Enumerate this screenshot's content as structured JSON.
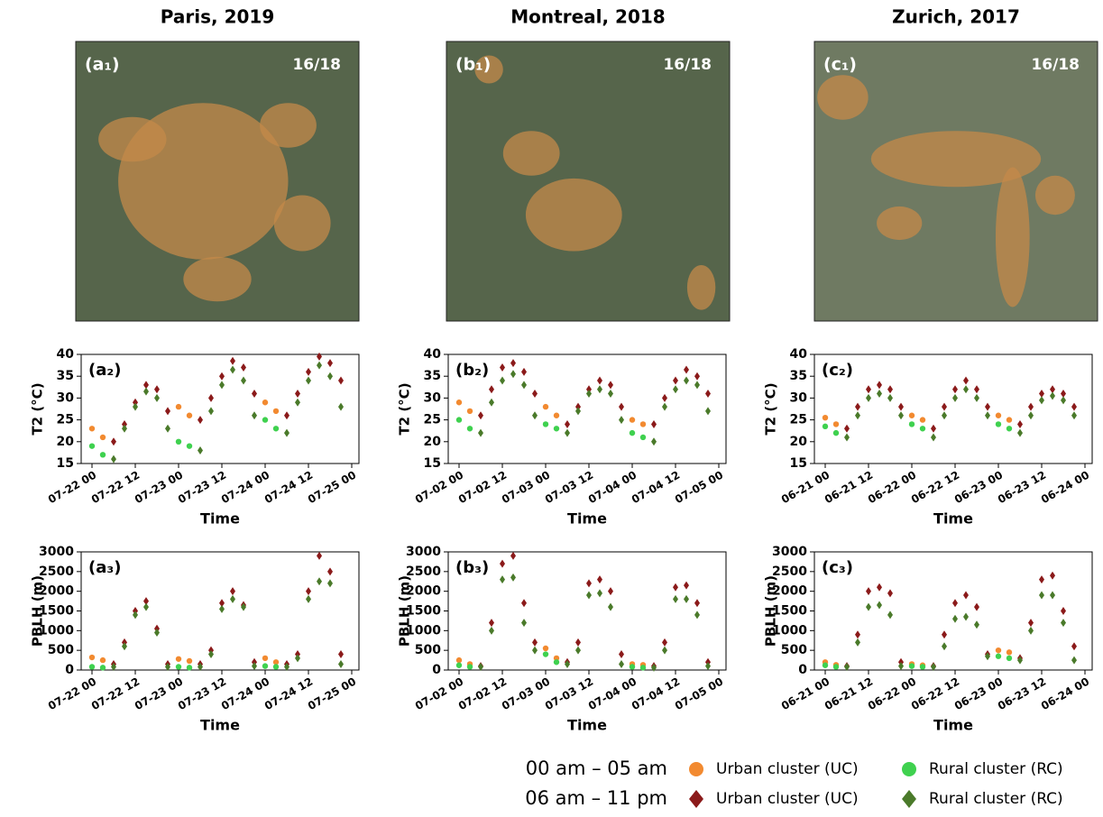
{
  "maps": [
    {
      "title": "Paris, 2019",
      "panel": "(a₁)",
      "ratio": "16/18"
    },
    {
      "title": "Montreal, 2018",
      "panel": "(b₁)",
      "ratio": "16/18"
    },
    {
      "title": "Zurich, 2017",
      "panel": "(c₁)",
      "ratio": "16/18"
    }
  ],
  "legend": {
    "periods": [
      "00 am – 05 am",
      "06 am – 11 pm"
    ]
  },
  "chart_data": [
    {
      "type": "scatter",
      "panel": "(a₂)",
      "y_label": "T2 (°C)",
      "x_label": "Time",
      "xlim": [
        -3,
        74
      ],
      "xticks": [
        {
          "value": 0,
          "label": "07-22 00"
        },
        {
          "value": 12,
          "label": "07-22 12"
        },
        {
          "value": 24,
          "label": "07-23 00"
        },
        {
          "value": 36,
          "label": "07-23 12"
        },
        {
          "value": 48,
          "label": "07-24 00"
        },
        {
          "value": 60,
          "label": "07-24 12"
        },
        {
          "value": 72,
          "label": "07-25 00"
        }
      ],
      "ylim": [
        15,
        40
      ],
      "yticks": [
        15,
        20,
        25,
        30,
        35,
        40
      ],
      "series": [
        {
          "name": "Urban cluster (UC)",
          "color": "#f28a30",
          "marker": "circle",
          "x": [
            0,
            3,
            24,
            27,
            48,
            51
          ],
          "values": [
            23,
            21,
            28,
            26,
            29,
            27
          ]
        },
        {
          "name": "Rural cluster (RC)",
          "color": "#3fd14f",
          "marker": "circle",
          "x": [
            0,
            3,
            24,
            27,
            48,
            51
          ],
          "values": [
            19,
            17,
            20,
            19,
            25,
            23
          ]
        },
        {
          "name": "Urban cluster (UC)",
          "color": "#8b1a1a",
          "marker": "diamond",
          "x": [
            6,
            9,
            12,
            15,
            18,
            21,
            30,
            33,
            36,
            39,
            42,
            45,
            54,
            57,
            60,
            63,
            66,
            69
          ],
          "values": [
            20,
            24,
            29,
            33,
            32,
            27,
            25,
            30,
            35,
            38.5,
            37,
            31,
            26,
            31,
            36,
            39.5,
            38,
            34
          ]
        },
        {
          "name": "Rural cluster (RC)",
          "color": "#4a7a2a",
          "marker": "diamond",
          "x": [
            6,
            9,
            12,
            15,
            18,
            21,
            30,
            33,
            36,
            39,
            42,
            45,
            54,
            57,
            60,
            63,
            66,
            69
          ],
          "values": [
            16,
            23,
            28,
            31.5,
            30,
            23,
            18,
            27,
            33,
            36.5,
            34,
            26,
            22,
            29,
            34,
            37.5,
            35,
            28
          ]
        }
      ]
    },
    {
      "type": "scatter",
      "panel": "(b₂)",
      "y_label": "T2 (°C)",
      "x_label": "Time",
      "xlim": [
        -3,
        74
      ],
      "xticks": [
        {
          "value": 0,
          "label": "07-02 00"
        },
        {
          "value": 12,
          "label": "07-02 12"
        },
        {
          "value": 24,
          "label": "07-03 00"
        },
        {
          "value": 36,
          "label": "07-03 12"
        },
        {
          "value": 48,
          "label": "07-04 00"
        },
        {
          "value": 60,
          "label": "07-04 12"
        },
        {
          "value": 72,
          "label": "07-05 00"
        }
      ],
      "ylim": [
        15,
        40
      ],
      "yticks": [
        15,
        20,
        25,
        30,
        35,
        40
      ],
      "series": [
        {
          "name": "Urban cluster (UC)",
          "color": "#f28a30",
          "marker": "circle",
          "x": [
            0,
            3,
            24,
            27,
            48,
            51
          ],
          "values": [
            29,
            27,
            28,
            26,
            25,
            24
          ]
        },
        {
          "name": "Rural cluster (RC)",
          "color": "#3fd14f",
          "marker": "circle",
          "x": [
            0,
            3,
            24,
            27,
            48,
            51
          ],
          "values": [
            25,
            23,
            24,
            23,
            22,
            21
          ]
        },
        {
          "name": "Urban cluster (UC)",
          "color": "#8b1a1a",
          "marker": "diamond",
          "x": [
            6,
            9,
            12,
            15,
            18,
            21,
            30,
            33,
            36,
            39,
            42,
            45,
            54,
            57,
            60,
            63,
            66,
            69
          ],
          "values": [
            26,
            32,
            37,
            38,
            36,
            31,
            24,
            28,
            32,
            34,
            33,
            28,
            24,
            30,
            34,
            36.5,
            35,
            31
          ]
        },
        {
          "name": "Rural cluster (RC)",
          "color": "#4a7a2a",
          "marker": "diamond",
          "x": [
            6,
            9,
            12,
            15,
            18,
            21,
            30,
            33,
            36,
            39,
            42,
            45,
            54,
            57,
            60,
            63,
            66,
            69
          ],
          "values": [
            22,
            29,
            34,
            35.5,
            33,
            26,
            22,
            27,
            31,
            32,
            31,
            25,
            20,
            28,
            32,
            34,
            33,
            27
          ]
        }
      ]
    },
    {
      "type": "scatter",
      "panel": "(c₂)",
      "y_label": "T2 (°C)",
      "x_label": "Time",
      "xlim": [
        -3,
        74
      ],
      "xticks": [
        {
          "value": 0,
          "label": "06-21 00"
        },
        {
          "value": 12,
          "label": "06-21 12"
        },
        {
          "value": 24,
          "label": "06-22 00"
        },
        {
          "value": 36,
          "label": "06-22 12"
        },
        {
          "value": 48,
          "label": "06-23 00"
        },
        {
          "value": 60,
          "label": "06-23 12"
        },
        {
          "value": 72,
          "label": "06-24 00"
        }
      ],
      "ylim": [
        15,
        40
      ],
      "yticks": [
        15,
        20,
        25,
        30,
        35,
        40
      ],
      "series": [
        {
          "name": "Urban cluster (UC)",
          "color": "#f28a30",
          "marker": "circle",
          "x": [
            0,
            3,
            24,
            27,
            48,
            51
          ],
          "values": [
            25.5,
            24,
            26,
            25,
            26,
            25
          ]
        },
        {
          "name": "Rural cluster (RC)",
          "color": "#3fd14f",
          "marker": "circle",
          "x": [
            0,
            3,
            24,
            27,
            48,
            51
          ],
          "values": [
            23.5,
            22,
            24,
            23,
            24,
            23
          ]
        },
        {
          "name": "Urban cluster (UC)",
          "color": "#8b1a1a",
          "marker": "diamond",
          "x": [
            6,
            9,
            12,
            15,
            18,
            21,
            30,
            33,
            36,
            39,
            42,
            45,
            54,
            57,
            60,
            63,
            66,
            69
          ],
          "values": [
            23,
            28,
            32,
            33,
            32,
            28,
            23,
            28,
            32,
            34,
            32,
            28,
            24,
            28,
            31,
            32,
            31,
            28
          ]
        },
        {
          "name": "Rural cluster (RC)",
          "color": "#4a7a2a",
          "marker": "diamond",
          "x": [
            6,
            9,
            12,
            15,
            18,
            21,
            30,
            33,
            36,
            39,
            42,
            45,
            54,
            57,
            60,
            63,
            66,
            69
          ],
          "values": [
            21,
            26,
            30,
            31,
            30,
            26,
            21,
            26,
            30,
            32,
            30,
            26,
            22,
            26,
            29.5,
            30.5,
            29.5,
            26
          ]
        }
      ]
    },
    {
      "type": "scatter",
      "panel": "(a₃)",
      "y_label": "PBLH (m)",
      "x_label": "Time",
      "xlim": [
        -3,
        74
      ],
      "xticks": [
        {
          "value": 0,
          "label": "07-22 00"
        },
        {
          "value": 12,
          "label": "07-22 12"
        },
        {
          "value": 24,
          "label": "07-23 00"
        },
        {
          "value": 36,
          "label": "07-23 12"
        },
        {
          "value": 48,
          "label": "07-24 00"
        },
        {
          "value": 60,
          "label": "07-24 12"
        },
        {
          "value": 72,
          "label": "07-25 00"
        }
      ],
      "ylim": [
        0,
        3000
      ],
      "yticks": [
        0,
        500,
        1000,
        1500,
        2000,
        2500,
        3000
      ],
      "series": [
        {
          "name": "Urban cluster (UC)",
          "color": "#f28a30",
          "marker": "circle",
          "x": [
            0,
            3,
            24,
            27,
            48,
            51
          ],
          "values": [
            320,
            250,
            280,
            230,
            300,
            200
          ]
        },
        {
          "name": "Rural cluster (RC)",
          "color": "#3fd14f",
          "marker": "circle",
          "x": [
            0,
            3,
            24,
            27,
            48,
            51
          ],
          "values": [
            80,
            60,
            80,
            60,
            100,
            80
          ]
        },
        {
          "name": "Urban cluster (UC)",
          "color": "#8b1a1a",
          "marker": "diamond",
          "x": [
            6,
            9,
            12,
            15,
            18,
            21,
            30,
            33,
            36,
            39,
            42,
            45,
            54,
            57,
            60,
            63,
            66,
            69
          ],
          "values": [
            150,
            700,
            1500,
            1750,
            1050,
            150,
            150,
            500,
            1700,
            2000,
            1650,
            200,
            150,
            400,
            2000,
            2900,
            2500,
            400
          ]
        },
        {
          "name": "Rural cluster (RC)",
          "color": "#4a7a2a",
          "marker": "diamond",
          "x": [
            6,
            9,
            12,
            15,
            18,
            21,
            30,
            33,
            36,
            39,
            42,
            45,
            54,
            57,
            60,
            63,
            66,
            69
          ],
          "values": [
            80,
            600,
            1400,
            1600,
            950,
            80,
            80,
            400,
            1550,
            1800,
            1600,
            100,
            80,
            300,
            1800,
            2250,
            2200,
            150
          ]
        }
      ]
    },
    {
      "type": "scatter",
      "panel": "(b₃)",
      "y_label": "PBLH (m)",
      "x_label": "Time",
      "xlim": [
        -3,
        74
      ],
      "xticks": [
        {
          "value": 0,
          "label": "07-02 00"
        },
        {
          "value": 12,
          "label": "07-02 12"
        },
        {
          "value": 24,
          "label": "07-03 00"
        },
        {
          "value": 36,
          "label": "07-03 12"
        },
        {
          "value": 48,
          "label": "07-04 00"
        },
        {
          "value": 60,
          "label": "07-04 12"
        },
        {
          "value": 72,
          "label": "07-05 00"
        }
      ],
      "ylim": [
        0,
        3000
      ],
      "yticks": [
        0,
        500,
        1000,
        1500,
        2000,
        2500,
        3000
      ],
      "series": [
        {
          "name": "Urban cluster (UC)",
          "color": "#f28a30",
          "marker": "circle",
          "x": [
            0,
            3,
            24,
            27,
            48,
            51
          ],
          "values": [
            250,
            150,
            550,
            300,
            150,
            130
          ]
        },
        {
          "name": "Rural cluster (RC)",
          "color": "#3fd14f",
          "marker": "circle",
          "x": [
            0,
            3,
            24,
            27,
            48,
            51
          ],
          "values": [
            120,
            80,
            400,
            200,
            80,
            60
          ]
        },
        {
          "name": "Urban cluster (UC)",
          "color": "#8b1a1a",
          "marker": "diamond",
          "x": [
            6,
            9,
            12,
            15,
            18,
            21,
            30,
            33,
            36,
            39,
            42,
            45,
            54,
            57,
            60,
            63,
            66,
            69
          ],
          "values": [
            100,
            1200,
            2700,
            2900,
            1700,
            700,
            200,
            700,
            2200,
            2300,
            2000,
            400,
            100,
            700,
            2100,
            2150,
            1700,
            200
          ]
        },
        {
          "name": "Rural cluster (RC)",
          "color": "#4a7a2a",
          "marker": "diamond",
          "x": [
            6,
            9,
            12,
            15,
            18,
            21,
            30,
            33,
            36,
            39,
            42,
            45,
            54,
            57,
            60,
            63,
            66,
            69
          ],
          "values": [
            80,
            1000,
            2300,
            2350,
            1200,
            500,
            150,
            500,
            1900,
            1950,
            1600,
            150,
            60,
            500,
            1800,
            1800,
            1400,
            100
          ]
        }
      ]
    },
    {
      "type": "scatter",
      "panel": "(c₃)",
      "y_label": "PBLH (m)",
      "x_label": "Time",
      "xlim": [
        -3,
        74
      ],
      "xticks": [
        {
          "value": 0,
          "label": "06-21 00"
        },
        {
          "value": 12,
          "label": "06-21 12"
        },
        {
          "value": 24,
          "label": "06-22 00"
        },
        {
          "value": 36,
          "label": "06-22 12"
        },
        {
          "value": 48,
          "label": "06-23 00"
        },
        {
          "value": 60,
          "label": "06-23 12"
        },
        {
          "value": 72,
          "label": "06-24 00"
        }
      ],
      "ylim": [
        0,
        3000
      ],
      "yticks": [
        0,
        500,
        1000,
        1500,
        2000,
        2500,
        3000
      ],
      "series": [
        {
          "name": "Urban cluster (UC)",
          "color": "#f28a30",
          "marker": "circle",
          "x": [
            0,
            3,
            24,
            27,
            48,
            51
          ],
          "values": [
            200,
            130,
            150,
            120,
            500,
            450
          ]
        },
        {
          "name": "Rural cluster (RC)",
          "color": "#3fd14f",
          "marker": "circle",
          "x": [
            0,
            3,
            24,
            27,
            48,
            51
          ],
          "values": [
            120,
            80,
            100,
            80,
            350,
            300
          ]
        },
        {
          "name": "Urban cluster (UC)",
          "color": "#8b1a1a",
          "marker": "diamond",
          "x": [
            6,
            9,
            12,
            15,
            18,
            21,
            30,
            33,
            36,
            39,
            42,
            45,
            54,
            57,
            60,
            63,
            66,
            69
          ],
          "values": [
            100,
            900,
            2000,
            2100,
            1950,
            200,
            100,
            900,
            1700,
            1900,
            1600,
            400,
            300,
            1200,
            2300,
            2400,
            1500,
            600
          ]
        },
        {
          "name": "Rural cluster (RC)",
          "color": "#4a7a2a",
          "marker": "diamond",
          "x": [
            6,
            9,
            12,
            15,
            18,
            21,
            30,
            33,
            36,
            39,
            42,
            45,
            54,
            57,
            60,
            63,
            66,
            69
          ],
          "values": [
            80,
            700,
            1600,
            1650,
            1400,
            100,
            80,
            600,
            1300,
            1350,
            1150,
            350,
            250,
            1000,
            1900,
            1900,
            1200,
            250
          ]
        }
      ]
    }
  ]
}
